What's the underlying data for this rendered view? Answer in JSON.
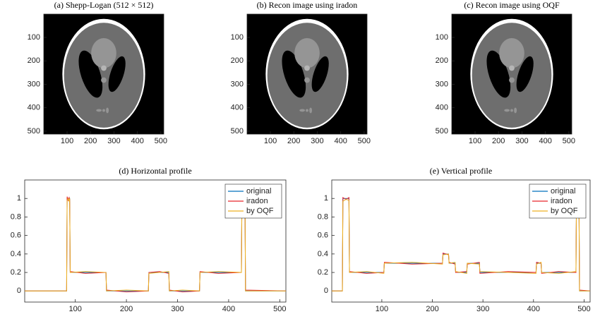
{
  "chart_data": [
    {
      "type": "image",
      "title": "(a) Shepp-Logan (512 × 512)",
      "xlim": [
        0.5,
        512.5
      ],
      "ylim": [
        0.5,
        512.5
      ],
      "yreverse": true,
      "xticks": [
        100,
        200,
        300,
        400,
        500
      ],
      "yticks": [
        100,
        200,
        300,
        400,
        500
      ]
    },
    {
      "type": "image",
      "title": "(b) Recon image using iradon",
      "xlim": [
        0.5,
        512.5
      ],
      "ylim": [
        0.5,
        512.5
      ],
      "yreverse": true,
      "xticks": [
        100,
        200,
        300,
        400,
        500
      ],
      "yticks": [
        100,
        200,
        300,
        400,
        500
      ]
    },
    {
      "type": "image",
      "title": "(c) Recon image using OQF",
      "xlim": [
        0.5,
        512.5
      ],
      "ylim": [
        0.5,
        512.5
      ],
      "yreverse": true,
      "xticks": [
        100,
        200,
        300,
        400,
        500
      ],
      "yticks": [
        100,
        200,
        300,
        400,
        500
      ]
    },
    {
      "type": "line",
      "title": "(d) Horizontal profile",
      "xlim": [
        1,
        512
      ],
      "ylim": [
        -0.12,
        1.2
      ],
      "xticks": [
        100,
        200,
        300,
        400,
        500
      ],
      "yticks": [
        0,
        0.2,
        0.4,
        0.6,
        0.8,
        1
      ],
      "legend": "upper right",
      "x": [
        1,
        83,
        84,
        86,
        88,
        89,
        90,
        120,
        160,
        161,
        200,
        243,
        244,
        265,
        283,
        284,
        310,
        343,
        344,
        380,
        425,
        426,
        428,
        431,
        432,
        433,
        512
      ],
      "series": [
        {
          "name": "original",
          "color": "#0072bd",
          "values": [
            0,
            0,
            1,
            1,
            1,
            1,
            0.2,
            0.2,
            0.2,
            0,
            0,
            0,
            0.2,
            0.2,
            0.2,
            0,
            0,
            0,
            0.2,
            0.2,
            0.2,
            1,
            1,
            1,
            1,
            0,
            0
          ]
        },
        {
          "name": "iradon",
          "color": "#e8262b",
          "values": [
            0,
            0,
            1.02,
            0.98,
            1.01,
            0.99,
            0.21,
            0.19,
            0.2,
            0.01,
            -0.01,
            0,
            0.2,
            0.21,
            0.19,
            0.01,
            -0.01,
            0,
            0.21,
            0.19,
            0.2,
            0.99,
            1.01,
            1,
            0.98,
            0.01,
            0
          ]
        },
        {
          "name": "by OQF",
          "color": "#edb120",
          "values": [
            0,
            0,
            0.98,
            1,
            0.97,
            1,
            0.2,
            0.21,
            0.2,
            0,
            0.01,
            0,
            0.19,
            0.2,
            0.21,
            0,
            0.01,
            0,
            0.2,
            0.21,
            0.2,
            1,
            0.98,
            1,
            0.99,
            0,
            0
          ]
        }
      ]
    },
    {
      "type": "line",
      "title": "(e) Vertical profile",
      "xlim": [
        1,
        512
      ],
      "ylim": [
        -0.12,
        1.2
      ],
      "xticks": [
        100,
        200,
        300,
        400,
        500
      ],
      "yticks": [
        0,
        0.2,
        0.4,
        0.6,
        0.8,
        1
      ],
      "legend": "upper right",
      "x": [
        1,
        22,
        23,
        29,
        35,
        36,
        70,
        104,
        105,
        160,
        220,
        221,
        232,
        233,
        245,
        246,
        268,
        269,
        293,
        294,
        350,
        405,
        406,
        415,
        416,
        450,
        484,
        485,
        488,
        490,
        491,
        512
      ],
      "series": [
        {
          "name": "original",
          "color": "#0072bd",
          "values": [
            0,
            0,
            1,
            1,
            1,
            0.2,
            0.2,
            0.2,
            0.3,
            0.3,
            0.3,
            0.4,
            0.4,
            0.3,
            0.3,
            0.2,
            0.2,
            0.3,
            0.3,
            0.2,
            0.2,
            0.2,
            0.3,
            0.3,
            0.2,
            0.2,
            0.2,
            1,
            1,
            1,
            0,
            0
          ]
        },
        {
          "name": "iradon",
          "color": "#e8262b",
          "values": [
            0,
            0,
            1.01,
            0.99,
            1.01,
            0.21,
            0.19,
            0.2,
            0.31,
            0.29,
            0.3,
            0.41,
            0.39,
            0.31,
            0.29,
            0.2,
            0.21,
            0.29,
            0.31,
            0.19,
            0.21,
            0.2,
            0.31,
            0.3,
            0.19,
            0.21,
            0.2,
            0.98,
            1.01,
            0.99,
            0.01,
            0
          ]
        },
        {
          "name": "by OQF",
          "color": "#edb120",
          "values": [
            0,
            0,
            0.97,
            0.99,
            0.98,
            0.2,
            0.21,
            0.19,
            0.3,
            0.31,
            0.29,
            0.39,
            0.4,
            0.3,
            0.31,
            0.21,
            0.19,
            0.3,
            0.29,
            0.21,
            0.2,
            0.19,
            0.29,
            0.31,
            0.2,
            0.19,
            0.21,
            0.96,
            0.99,
            0.97,
            0,
            0
          ]
        }
      ]
    }
  ]
}
